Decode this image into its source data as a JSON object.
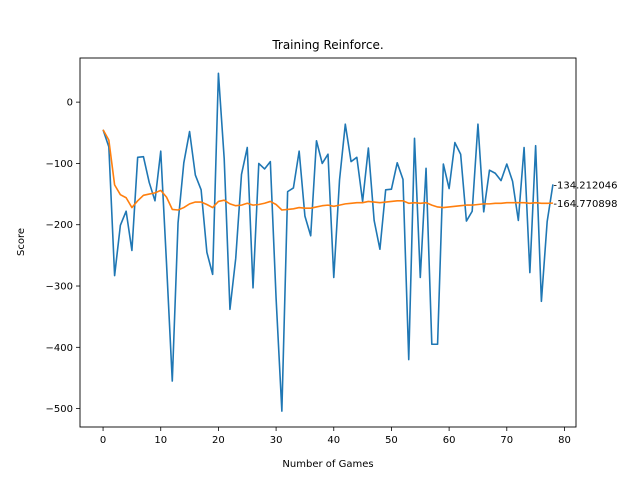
{
  "chart_data": {
    "type": "line",
    "title": "Training Reinforce.",
    "xlabel": "Number of Games",
    "ylabel": "Score",
    "xlim": [
      -4,
      82
    ],
    "ylim": [
      -530,
      72
    ],
    "xticks": [
      0,
      10,
      20,
      30,
      40,
      50,
      60,
      70,
      80
    ],
    "yticks": [
      -500,
      -400,
      -300,
      -200,
      -100,
      0
    ],
    "grid": false,
    "series": [
      {
        "color": "#1f77b4",
        "values": [
          -45,
          -73,
          -283,
          -201,
          -178,
          -242,
          -90,
          -89,
          -131,
          -161,
          -80,
          -263,
          -455,
          -197,
          -99,
          -48,
          -119,
          -143,
          -245,
          -281,
          47,
          -92,
          -338,
          -255,
          -118,
          -74,
          -303,
          -100,
          -109,
          -97,
          -320,
          -504,
          -146,
          -140,
          -80,
          -186,
          -218,
          -63,
          -100,
          -85,
          -286,
          -127,
          -36,
          -97,
          -90,
          -162,
          -75,
          -193,
          -240,
          -143,
          -142,
          -99,
          -126,
          -420,
          -59,
          -286,
          -108,
          -395,
          -395,
          -101,
          -141,
          -66,
          -85,
          -194,
          -178,
          -36,
          -179,
          -111,
          -116,
          -128,
          -101,
          -129,
          -193,
          -74,
          -278,
          -71,
          -325,
          -195,
          -134.212046
        ]
      },
      {
        "color": "#ff7f0e",
        "values": [
          -45,
          -62,
          -135,
          -151,
          -156,
          -172,
          -161,
          -152,
          -150,
          -148,
          -144,
          -155,
          -175,
          -176,
          -172,
          -166,
          -163,
          -163,
          -167,
          -172,
          -162,
          -160,
          -166,
          -169,
          -168,
          -165,
          -168,
          -167,
          -165,
          -162,
          -167,
          -176,
          -175,
          -174,
          -172,
          -173,
          -173,
          -171,
          -169,
          -168,
          -170,
          -168,
          -166,
          -165,
          -164,
          -164,
          -162,
          -163,
          -164,
          -163,
          -162,
          -161,
          -161,
          -165,
          -164,
          -165,
          -164,
          -168,
          -171,
          -172,
          -171,
          -170,
          -169,
          -168,
          -168,
          -167,
          -166,
          -166,
          -165,
          -165,
          -164,
          -164,
          -164,
          -164,
          -165,
          -164,
          -165,
          -165,
          -164.770898
        ]
      }
    ],
    "end_labels": [
      "-134.212046",
      "-164.770898"
    ]
  }
}
